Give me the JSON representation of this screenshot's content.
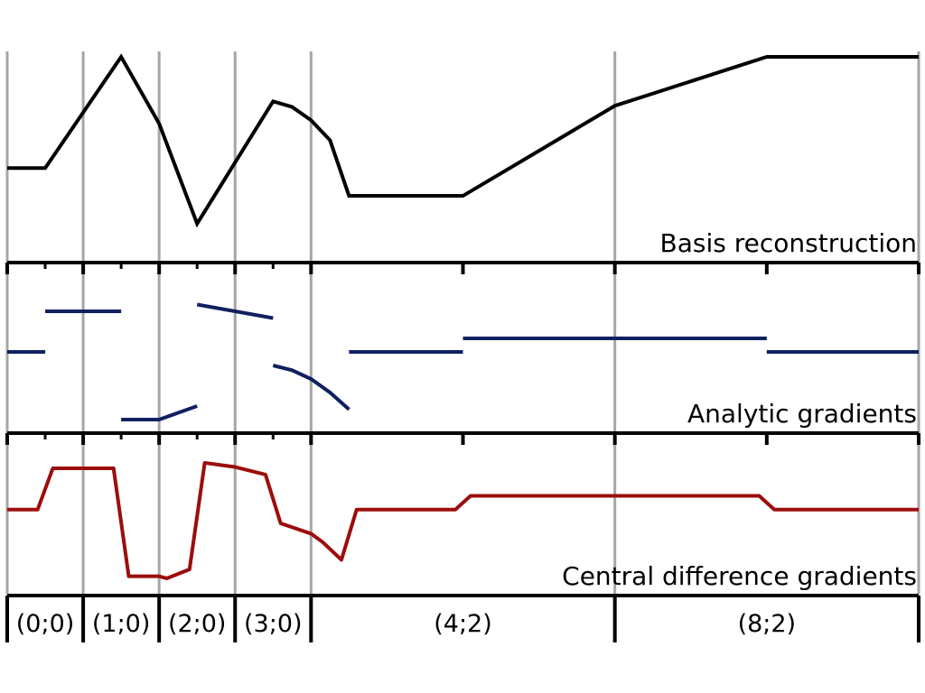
{
  "colors": {
    "grid": "#a6a6a6",
    "axis": "#000000",
    "basis": "#000000",
    "analytic": "#102060",
    "central": "#9c0d0d"
  },
  "panels": {
    "basis": {
      "label": "Basis reconstruction",
      "curve": [
        [
          0,
          0.5
        ],
        [
          0.5,
          0.5
        ],
        [
          1.5,
          1.5
        ],
        [
          2.0,
          0.9
        ],
        [
          2.5,
          0.0
        ],
        [
          3.0,
          0.55
        ],
        [
          3.5,
          1.1
        ],
        [
          3.75,
          1.05
        ],
        [
          4.0,
          0.93
        ],
        [
          4.25,
          0.75
        ],
        [
          4.5,
          0.25
        ],
        [
          6.0,
          0.25
        ],
        [
          8.0,
          1.06
        ],
        [
          10.0,
          1.5
        ],
        [
          12.0,
          1.5
        ]
      ],
      "yrange": [
        -0.35,
        1.5
      ]
    },
    "analytic": {
      "label": "Analytic gradients",
      "segments": [
        [
          [
            0,
            0
          ],
          [
            0.5,
            0
          ]
        ],
        [
          [
            0.5,
            0.6
          ],
          [
            1.5,
            0.6
          ]
        ],
        [
          [
            1.5,
            -1.0
          ],
          [
            2.0,
            -1.0
          ],
          [
            2.5,
            -0.8
          ]
        ],
        [
          [
            2.5,
            0.7
          ],
          [
            3.0,
            0.6
          ],
          [
            3.5,
            0.5
          ]
        ],
        [
          [
            3.5,
            -0.2
          ],
          [
            3.75,
            -0.27
          ],
          [
            4.0,
            -0.4
          ],
          [
            4.25,
            -0.6
          ],
          [
            4.5,
            -0.85
          ]
        ],
        [
          [
            4.5,
            0
          ],
          [
            6.0,
            0
          ]
        ],
        [
          [
            6.0,
            0.2
          ],
          [
            10.0,
            0.2
          ]
        ],
        [
          [
            10.0,
            0
          ],
          [
            12.0,
            0
          ]
        ]
      ],
      "yrange": [
        -1.2,
        1.0
      ]
    },
    "central": {
      "label": "Central difference gradients",
      "curve": [
        [
          0,
          0
        ],
        [
          0.4,
          0
        ],
        [
          0.6,
          0.6
        ],
        [
          1.4,
          0.6
        ],
        [
          1.6,
          -0.97
        ],
        [
          2.0,
          -0.97
        ],
        [
          2.1,
          -1.0
        ],
        [
          2.4,
          -0.87
        ],
        [
          2.6,
          0.68
        ],
        [
          3.0,
          0.62
        ],
        [
          3.4,
          0.51
        ],
        [
          3.6,
          -0.2
        ],
        [
          4.0,
          -0.35
        ],
        [
          4.15,
          -0.47
        ],
        [
          4.4,
          -0.73
        ],
        [
          4.6,
          0
        ],
        [
          5.9,
          0
        ],
        [
          6.1,
          0.2
        ],
        [
          9.9,
          0.2
        ],
        [
          10.1,
          0
        ],
        [
          12.0,
          0
        ]
      ],
      "yrange": [
        -1.25,
        0.85
      ]
    }
  },
  "grid_x": [
    0,
    1,
    2,
    3,
    4,
    8,
    12
  ],
  "major_ticks": [
    0,
    1,
    2,
    3,
    4,
    6,
    8,
    10,
    12
  ],
  "minor_ticks": [
    0.5,
    1.5,
    2.5,
    3.5
  ],
  "segments": [
    {
      "label": "(0;0)",
      "from": 0,
      "to": 1
    },
    {
      "label": "(1;0)",
      "from": 1,
      "to": 2
    },
    {
      "label": "(2;0)",
      "from": 2,
      "to": 3
    },
    {
      "label": "(3;0)",
      "from": 3,
      "to": 4
    },
    {
      "label": "(4;2)",
      "from": 4,
      "to": 8
    },
    {
      "label": "(8;2)",
      "from": 8,
      "to": 12
    }
  ]
}
